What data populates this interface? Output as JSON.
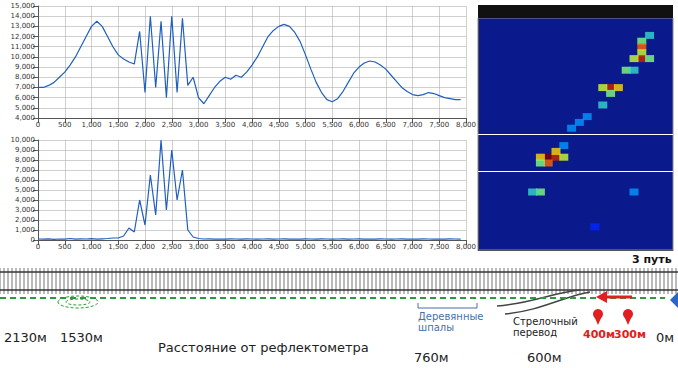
{
  "chart_data": [
    {
      "type": "line",
      "color": "#1f5fbf",
      "grid": true,
      "x": [
        0,
        100,
        200,
        300,
        400,
        500,
        600,
        700,
        800,
        900,
        1000,
        1100,
        1200,
        1300,
        1400,
        1500,
        1600,
        1700,
        1800,
        1900,
        2000,
        2100,
        2200,
        2300,
        2400,
        2500,
        2600,
        2700,
        2800,
        2900,
        3000,
        3100,
        3200,
        3300,
        3400,
        3500,
        3600,
        3700,
        3800,
        3900,
        4000,
        4100,
        4200,
        4300,
        4400,
        4500,
        4600,
        4700,
        4800,
        4900,
        5000,
        5100,
        5200,
        5300,
        5400,
        5500,
        5600,
        5700,
        5800,
        5900,
        6000,
        6100,
        6200,
        6300,
        6400,
        6500,
        6600,
        6700,
        6800,
        6900,
        7000,
        7100,
        7200,
        7300,
        7400,
        7500,
        7600,
        7700,
        7800,
        7900
      ],
      "values": [
        7000,
        7000,
        7200,
        7500,
        8000,
        8500,
        9200,
        10000,
        11000,
        12000,
        13000,
        13500,
        13000,
        12000,
        11000,
        10200,
        9800,
        9500,
        9300,
        12500,
        6500,
        14000,
        7000,
        13500,
        6000,
        14000,
        6500,
        13800,
        7200,
        8000,
        6000,
        5400,
        6200,
        7000,
        7600,
        8000,
        7800,
        8200,
        8000,
        8500,
        9200,
        10000,
        11000,
        12000,
        12600,
        13000,
        13200,
        13000,
        12400,
        11500,
        10200,
        8800,
        7500,
        6500,
        5800,
        5600,
        5900,
        6600,
        7500,
        8400,
        9000,
        9400,
        9600,
        9500,
        9200,
        8800,
        8200,
        7600,
        7000,
        6600,
        6300,
        6200,
        6300,
        6500,
        6400,
        6200,
        6000,
        5900,
        5800,
        5800
      ],
      "xlim": [
        0,
        8000
      ],
      "xticks": [
        0,
        500,
        1000,
        1500,
        2000,
        2500,
        3000,
        3500,
        4000,
        4500,
        5000,
        5500,
        6000,
        6500,
        7000,
        7500,
        8000
      ],
      "ylim": [
        4000,
        15000
      ],
      "yticks": [
        4000,
        5000,
        6000,
        7000,
        8000,
        9000,
        10000,
        11000,
        12000,
        13000,
        14000,
        15000
      ]
    },
    {
      "type": "line",
      "color": "#1f5fbf",
      "grid": true,
      "x": [
        0,
        100,
        200,
        300,
        400,
        500,
        600,
        700,
        800,
        900,
        1000,
        1100,
        1200,
        1300,
        1400,
        1500,
        1600,
        1700,
        1800,
        1900,
        2000,
        2100,
        2200,
        2300,
        2400,
        2500,
        2600,
        2700,
        2800,
        2900,
        3000,
        3100,
        3200,
        3300,
        3400,
        3500,
        3600,
        3700,
        3800,
        3900,
        4000,
        4100,
        4200,
        4300,
        4400,
        4500,
        4600,
        4700,
        4800,
        4900,
        5000,
        5100,
        5200,
        5300,
        5400,
        5500,
        5600,
        5700,
        5800,
        5900,
        6000,
        6100,
        6200,
        6300,
        6400,
        6500,
        6600,
        6700,
        6800,
        6900,
        7000,
        7100,
        7200,
        7300,
        7400,
        7500,
        7600,
        7700,
        7800,
        7900
      ],
      "values": [
        100,
        80,
        120,
        60,
        100,
        90,
        150,
        80,
        110,
        100,
        130,
        90,
        120,
        150,
        200,
        200,
        400,
        1200,
        800,
        4000,
        1500,
        6500,
        2500,
        10000,
        3000,
        9000,
        4000,
        7000,
        1000,
        300,
        150,
        100,
        120,
        90,
        100,
        80,
        110,
        100,
        90,
        120,
        100,
        80,
        100,
        110,
        90,
        100,
        120,
        80,
        100,
        90,
        110,
        100,
        80,
        120,
        100,
        90,
        100,
        110,
        80,
        100,
        120,
        90,
        100,
        80,
        110,
        100,
        90,
        100,
        120,
        80,
        100,
        90,
        110,
        100,
        80,
        100,
        90,
        110,
        100,
        90
      ],
      "xlim": [
        0,
        8000
      ],
      "xticks": [
        0,
        500,
        1000,
        1500,
        2000,
        2500,
        3000,
        3500,
        4000,
        4500,
        5000,
        5500,
        6000,
        6500,
        7000,
        7500,
        8000
      ],
      "ylim": [
        0,
        10000
      ],
      "yticks": [
        0,
        1000,
        2000,
        3000,
        4000,
        5000,
        6000,
        7000,
        8000,
        9000,
        10000
      ]
    },
    {
      "type": "heatmap",
      "tick_labels": false,
      "xlim": [
        0,
        25
      ],
      "ylim": [
        0,
        40
      ],
      "color_range": [
        0,
        1
      ],
      "hlines": [
        20,
        13.5
      ],
      "cells": [
        [
          21,
          36,
          0.5
        ],
        [
          21,
          35,
          0.8
        ],
        [
          21,
          34,
          0.6
        ],
        [
          22,
          37,
          0.4
        ],
        [
          21,
          33,
          0.9
        ],
        [
          20,
          33,
          0.6
        ],
        [
          22,
          33,
          0.5
        ],
        [
          19,
          31,
          0.5
        ],
        [
          20,
          31,
          0.4
        ],
        [
          17,
          28,
          0.9
        ],
        [
          18,
          28,
          0.7
        ],
        [
          16,
          28,
          0.6
        ],
        [
          17,
          27,
          0.5
        ],
        [
          16,
          25,
          0.4
        ],
        [
          14,
          23,
          0.3
        ],
        [
          13,
          22,
          0.3
        ],
        [
          12,
          21,
          0.3
        ],
        [
          11,
          18,
          0.3
        ],
        [
          9,
          16,
          1.0
        ],
        [
          10,
          16,
          0.9
        ],
        [
          8,
          16,
          0.7
        ],
        [
          9,
          15,
          0.8
        ],
        [
          10,
          17,
          0.7
        ],
        [
          11,
          16,
          0.6
        ],
        [
          8,
          15,
          0.5
        ],
        [
          8,
          10,
          0.5
        ],
        [
          7,
          10,
          0.4
        ],
        [
          20,
          10,
          0.3
        ],
        [
          15,
          4,
          0.2
        ]
      ]
    }
  ],
  "diagram": {
    "track_label": "3 путь",
    "caption": "Расстояние от рефлектометра",
    "distances": [
      "2130м",
      "1530м",
      "760м",
      "600м",
      "400м",
      "300м",
      "0м"
    ],
    "sleepers": "Деревянные\nшпалы",
    "switch": "Стрелочный\nперевод"
  }
}
